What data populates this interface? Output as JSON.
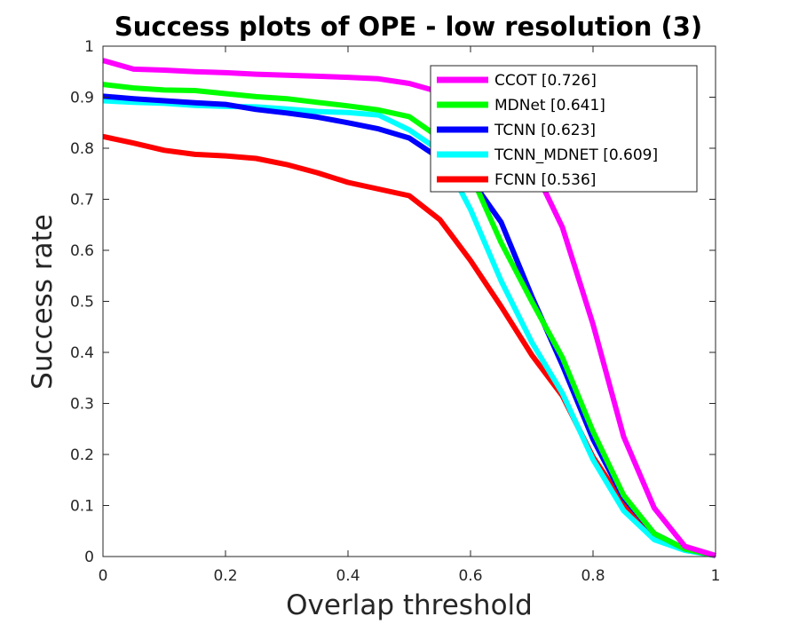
{
  "chart_data": {
    "type": "line",
    "title": "Success plots of OPE - low resolution (3)",
    "xlabel": "Overlap threshold",
    "ylabel": "Success rate",
    "xlim": [
      0,
      1
    ],
    "ylim": [
      0,
      1
    ],
    "xticks": [
      "0",
      "0.2",
      "0.4",
      "0.6",
      "0.8",
      "1"
    ],
    "yticks": [
      "0",
      "0.1",
      "0.2",
      "0.3",
      "0.4",
      "0.5",
      "0.6",
      "0.7",
      "0.8",
      "0.9",
      "1"
    ],
    "grid": false,
    "legend_position": "top-right",
    "x": [
      0,
      0.05,
      0.1,
      0.15,
      0.2,
      0.25,
      0.3,
      0.35,
      0.4,
      0.45,
      0.5,
      0.55,
      0.6,
      0.65,
      0.7,
      0.75,
      0.8,
      0.85,
      0.9,
      0.95,
      1
    ],
    "series": [
      {
        "name": "CCOT [0.726]",
        "color": "#ff00ff",
        "values": [
          0.972,
          0.955,
          0.953,
          0.95,
          0.948,
          0.945,
          0.943,
          0.941,
          0.939,
          0.936,
          0.927,
          0.91,
          0.89,
          0.85,
          0.77,
          0.645,
          0.455,
          0.235,
          0.095,
          0.02,
          0.002
        ]
      },
      {
        "name": "MDNet [0.641]",
        "color": "#00ff00",
        "values": [
          0.925,
          0.918,
          0.914,
          0.913,
          0.907,
          0.901,
          0.897,
          0.89,
          0.883,
          0.875,
          0.862,
          0.82,
          0.75,
          0.615,
          0.5,
          0.39,
          0.245,
          0.12,
          0.045,
          0.015,
          0.002
        ]
      },
      {
        "name": "TCNN [0.623]",
        "color": "#0000ff",
        "values": [
          0.902,
          0.897,
          0.893,
          0.889,
          0.886,
          0.876,
          0.869,
          0.861,
          0.85,
          0.838,
          0.82,
          0.78,
          0.74,
          0.655,
          0.51,
          0.375,
          0.23,
          0.115,
          0.045,
          0.015,
          0.002
        ]
      },
      {
        "name": "TCNN_MDNET [0.609]",
        "color": "#00ffff",
        "values": [
          0.893,
          0.89,
          0.888,
          0.884,
          0.882,
          0.881,
          0.877,
          0.872,
          0.87,
          0.865,
          0.836,
          0.795,
          0.68,
          0.54,
          0.42,
          0.32,
          0.19,
          0.09,
          0.033,
          0.012,
          0.002
        ]
      },
      {
        "name": "FCNN [0.536]",
        "color": "#ff0000",
        "values": [
          0.823,
          0.81,
          0.796,
          0.788,
          0.785,
          0.78,
          0.768,
          0.752,
          0.733,
          0.72,
          0.707,
          0.66,
          0.58,
          0.49,
          0.395,
          0.315,
          0.195,
          0.105,
          0.038,
          0.015,
          0.002
        ]
      }
    ]
  }
}
